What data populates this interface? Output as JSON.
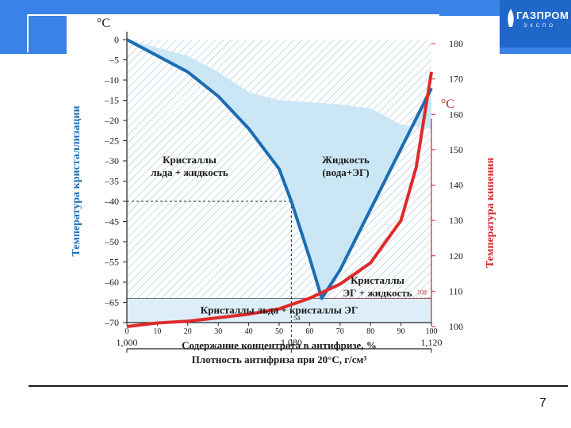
{
  "slide": {
    "page_number": "7",
    "logo_text": "ГАЗПРОМ",
    "logo_sub": "ЭКСПО"
  },
  "colors": {
    "freeze_curve": "#1b6db3",
    "boil_curve": "#e02a2a",
    "liquid_fill": "#c8e6f5",
    "band": "#3b82e8"
  },
  "chart_data": {
    "type": "line",
    "left_unit": "°C",
    "right_unit": "°C",
    "ylabel": "Температура кристаллизации",
    "y2label": "Температура кипения",
    "xlabel": "Содержание концентрата в антифризе, %",
    "x2label": "Плотность антифриза при 20°С, г/см³",
    "ylim": [
      -70,
      0
    ],
    "y2lim": [
      100,
      180
    ],
    "xlim": [
      0,
      100
    ],
    "y_ticks": [
      "0",
      "–5",
      "–10",
      "–15",
      "–20",
      "–25",
      "–30",
      "–35",
      "–40",
      "–45",
      "–50",
      "–55",
      "–60",
      "–65",
      "–70"
    ],
    "y2_ticks": [
      "180",
      "170",
      "160",
      "150",
      "140",
      "130",
      "120",
      "110",
      "100"
    ],
    "x_ticks": [
      "0",
      "10",
      "20",
      "30",
      "40",
      "50",
      "60",
      "70",
      "80",
      "90",
      "100"
    ],
    "density_ticks": [
      "1,000",
      "1,080",
      "1,120"
    ],
    "regions": {
      "ice_liquid": "Кристаллы льда + жидкость",
      "liquid": "Жидкость (вода+ЭГ)",
      "eg_liquid": "Кристаллы ЭГ + жидкость",
      "ice_eg": "Кристаллы льда + кристаллы ЭГ"
    },
    "annotations": {
      "boil_108": "108",
      "x_54": "54"
    },
    "series": [
      {
        "name": "Температура кристаллизации",
        "axis": "left",
        "x": [
          0,
          10,
          20,
          30,
          40,
          50,
          54,
          60,
          64,
          70,
          80,
          90,
          100
        ],
        "y": [
          0,
          -4,
          -8,
          -14,
          -22,
          -32,
          -40,
          -54,
          -64,
          -57,
          -42,
          -27,
          -12
        ]
      },
      {
        "name": "Температура кипения",
        "axis": "right",
        "x": [
          0,
          10,
          20,
          30,
          40,
          50,
          60,
          70,
          80,
          90,
          95,
          100
        ],
        "y": [
          100,
          101,
          101.5,
          102.5,
          103.5,
          105,
          108,
          112,
          118,
          130,
          145,
          172
        ]
      }
    ],
    "upper_bound": {
      "x": [
        0,
        20,
        30,
        40,
        50,
        60,
        70,
        80,
        90,
        100
      ],
      "y": [
        0,
        -4,
        -8,
        -13,
        -15,
        -15.5,
        -16,
        -17,
        -21,
        -22
      ]
    },
    "reference_lines": {
      "density_x": 54,
      "freeze_at_density": -40,
      "boil_at_108": 108
    }
  }
}
